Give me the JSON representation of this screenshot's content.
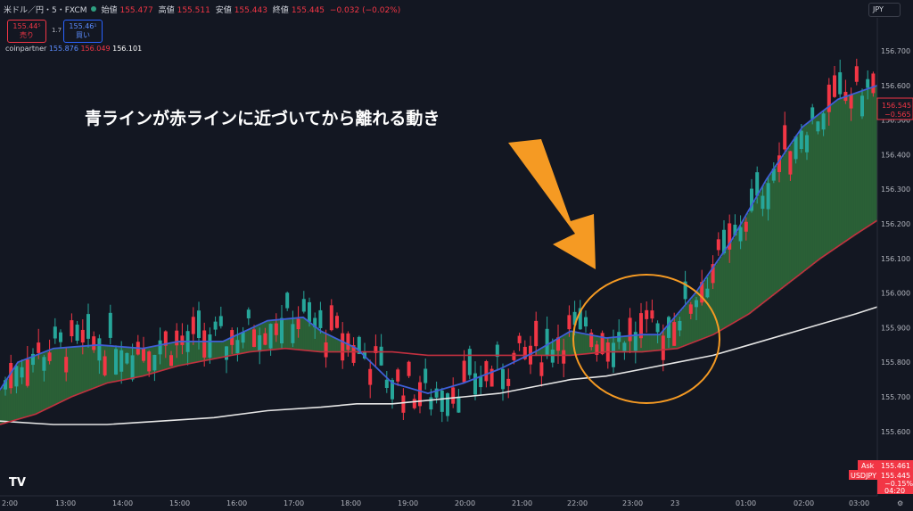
{
  "header": {
    "symbol": "米ドル／円・5・FXCM",
    "open_label": "始値",
    "open": "155.477",
    "high_label": "高値",
    "high": "155.511",
    "low_label": "安値",
    "low": "155.443",
    "close_label": "終値",
    "close": "155.445",
    "change": "−0.032 (−0.02%)",
    "currency": "JPY"
  },
  "trade": {
    "sell_price": "155.44⁵",
    "sell_label": "売り",
    "spread": "1.7",
    "buy_price": "155.46¹",
    "buy_label": "買い"
  },
  "indicator": {
    "name": "coinpartner",
    "v1": "155.876",
    "v2": "156.049",
    "v3": "156.101"
  },
  "annotation": "青ラインが赤ラインに近づいてから離れる動き",
  "price_tags": {
    "current": "156.545",
    "current_sub": "−0.565",
    "ask_label": "Ask",
    "ask": "155.461",
    "usdjpy_label": "USDJPY",
    "usdjpy": "155.445",
    "usdjpy_pct": "−0.15%",
    "timer": "04:20"
  },
  "colors": {
    "bg": "#131722",
    "up": "#26a69a",
    "down": "#f23645",
    "blue": "#3f5fd8",
    "red": "#c2303f",
    "white": "#e6e6e6",
    "fill": "#2e6b3a",
    "circle": "#f59a23",
    "arrow": "#f59a23"
  },
  "chart_data": {
    "type": "line",
    "y_axis": [
      "156.700",
      "156.600",
      "156.500",
      "156.400",
      "156.300",
      "156.200",
      "156.100",
      "156.000",
      "155.900",
      "155.800",
      "155.700",
      "155.600"
    ],
    "x_axis": [
      "2:00",
      "13:00",
      "14:00",
      "15:00",
      "16:00",
      "17:00",
      "18:00",
      "19:00",
      "20:00",
      "21:00",
      "22:00",
      "23:00",
      "23",
      "01:00",
      "02:00",
      "03:00"
    ],
    "series": [
      {
        "name": "blue",
        "x": [
          0,
          20,
          60,
          110,
          160,
          200,
          250,
          300,
          340,
          360,
          400,
          440,
          480,
          520,
          560,
          600,
          640,
          680,
          720,
          740,
          780,
          820,
          860,
          900,
          940,
          984
        ],
        "y": [
          155.72,
          155.8,
          155.84,
          155.85,
          155.84,
          155.86,
          155.86,
          155.92,
          155.93,
          155.89,
          155.84,
          155.74,
          155.71,
          155.74,
          155.78,
          155.83,
          155.89,
          155.87,
          155.88,
          155.88,
          156.0,
          156.15,
          156.33,
          156.48,
          156.56,
          156.6
        ]
      },
      {
        "name": "red",
        "x": [
          0,
          40,
          80,
          120,
          160,
          200,
          240,
          280,
          320,
          360,
          400,
          440,
          480,
          520,
          560,
          600,
          640,
          680,
          720,
          760,
          800,
          840,
          880,
          920,
          960,
          984
        ],
        "y": [
          155.62,
          155.65,
          155.7,
          155.74,
          155.76,
          155.79,
          155.81,
          155.83,
          155.84,
          155.83,
          155.83,
          155.83,
          155.82,
          155.82,
          155.82,
          155.82,
          155.82,
          155.83,
          155.83,
          155.84,
          155.88,
          155.94,
          156.02,
          156.1,
          156.17,
          156.21
        ]
      },
      {
        "name": "white",
        "x": [
          0,
          60,
          120,
          180,
          240,
          300,
          360,
          400,
          440,
          480,
          520,
          560,
          600,
          640,
          680,
          720,
          760,
          800,
          840,
          880,
          920,
          960,
          984
        ],
        "y": [
          155.63,
          155.62,
          155.62,
          155.63,
          155.64,
          155.66,
          155.67,
          155.68,
          155.68,
          155.69,
          155.7,
          155.71,
          155.73,
          155.75,
          155.76,
          155.78,
          155.8,
          155.82,
          155.85,
          155.88,
          155.91,
          155.94,
          155.96
        ]
      }
    ],
    "ylim": [
      155.55,
      156.73
    ]
  }
}
